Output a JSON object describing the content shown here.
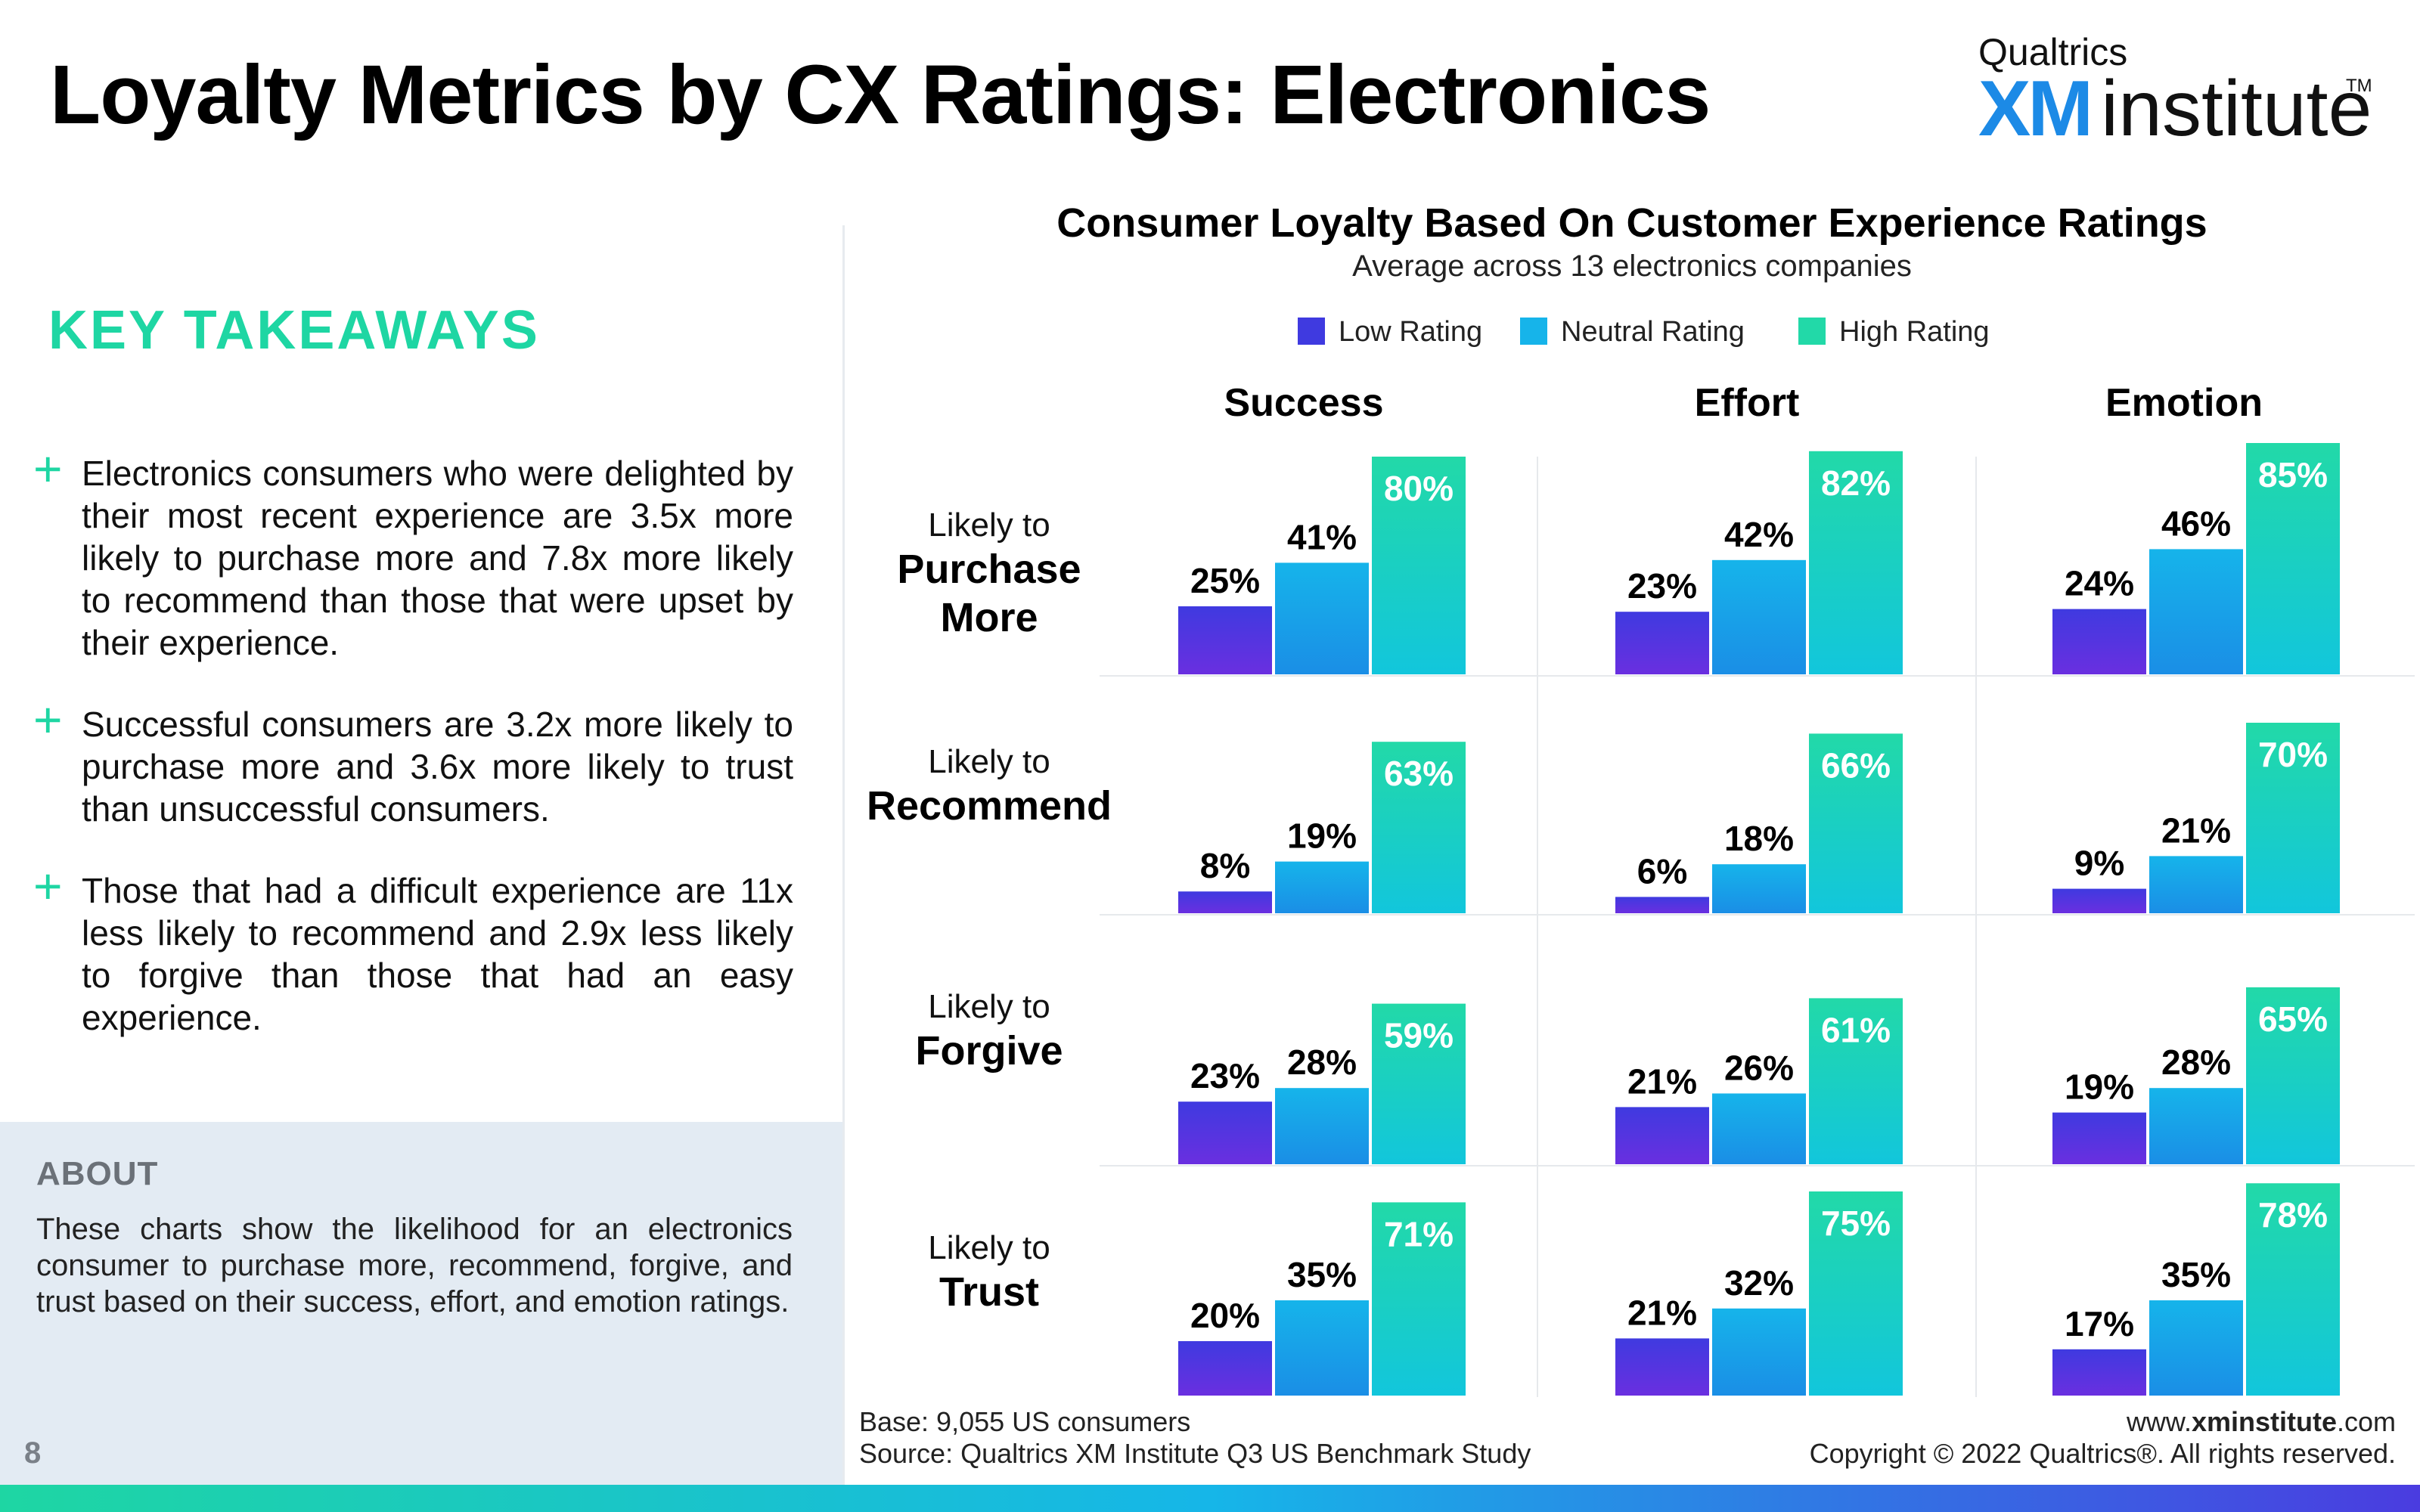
{
  "header": {
    "title": "Loyalty Metrics by CX Ratings: Electronics",
    "logo": {
      "top": "Qualtrics",
      "xm": "XM",
      "institute": "institute",
      "tm": "TM"
    }
  },
  "takeaways": {
    "title": "KEY TAKEAWAYS",
    "plus_glyph": "+",
    "items": [
      "Electronics consumers who were delighted by their most recent experience are 3.5x more likely to purchase more and 7.8x more likely to recommend than those that were upset by their experience.",
      "Successful consumers are 3.2x more likely to purchase more and 3.6x more likely to trust than unsuccessful consumers.",
      "Those that had a difficult experience are 11x less likely to recommend and 2.9x less likely to forgive than those that had an easy experience."
    ]
  },
  "about": {
    "title": "ABOUT",
    "text": "These charts show the likelihood for an electronics consumer to purchase more, recommend, forgive, and trust based on their success, effort, and emotion ratings."
  },
  "page_number": "8",
  "footer": {
    "base": "Base: 9,055 US consumers",
    "source": "Source: Qualtrics XM Institute Q3 US Benchmark Study",
    "url_prefix": "www.",
    "url_bold": "xminstitute",
    "url_suffix": ".com",
    "copyright": "Copyright © 2022 Qualtrics®. All rights reserved."
  },
  "colors": {
    "low_top": "#3f3ae0",
    "low_bottom": "#6a2fe0",
    "neutral_top": "#16b4ea",
    "neutral_bottom": "#1a8ee6",
    "high_top": "#22d9a8",
    "high_bottom": "#12c6dc",
    "accent": "#1ed6a3"
  },
  "chart_data": {
    "type": "bar",
    "title": "Consumer Loyalty Based On Customer Experience Ratings",
    "subtitle": "Average across 13 electronics companies",
    "legend": [
      "Low Rating",
      "Neutral Rating",
      "High Rating"
    ],
    "legend_position": "top-center",
    "columns": [
      "Success",
      "Effort",
      "Emotion"
    ],
    "rows": [
      {
        "prefix": "Likely to",
        "label_lines": [
          "Purchase",
          "More"
        ]
      },
      {
        "prefix": "Likely to",
        "label_lines": [
          "Recommend"
        ]
      },
      {
        "prefix": "Likely to",
        "label_lines": [
          "Forgive"
        ]
      },
      {
        "prefix": "Likely to",
        "label_lines": [
          "Trust"
        ]
      }
    ],
    "unit": "%",
    "ylim": [
      0,
      100
    ],
    "grid": false,
    "values": [
      [
        [
          25,
          41,
          80
        ],
        [
          23,
          42,
          82
        ],
        [
          24,
          46,
          85
        ]
      ],
      [
        [
          8,
          19,
          63
        ],
        [
          6,
          18,
          66
        ],
        [
          9,
          21,
          70
        ]
      ],
      [
        [
          23,
          28,
          59
        ],
        [
          21,
          26,
          61
        ],
        [
          19,
          28,
          65
        ]
      ],
      [
        [
          20,
          35,
          71
        ],
        [
          21,
          32,
          75
        ],
        [
          17,
          35,
          78
        ]
      ]
    ]
  }
}
